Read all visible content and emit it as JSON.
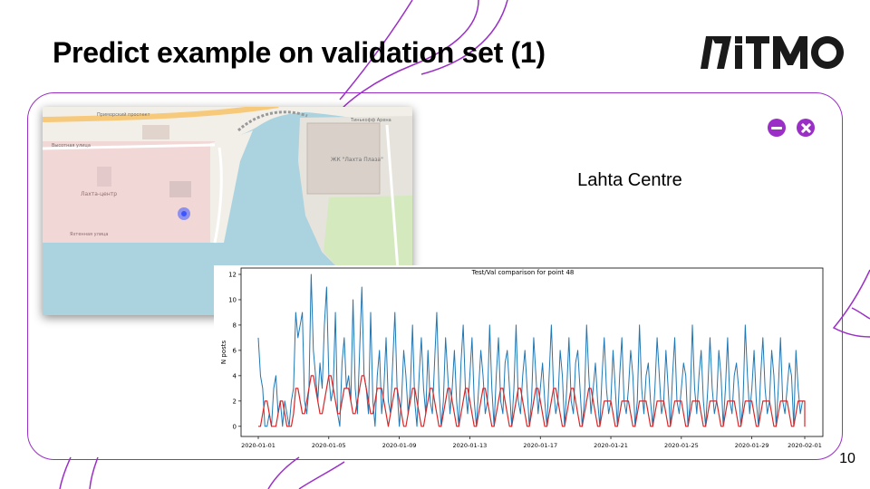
{
  "slide": {
    "title": "Predict example on validation set (1)",
    "logo_text": "ITMO",
    "page_number": "10",
    "accent_color": "#9b2ec7"
  },
  "map": {
    "labels": [
      "Лахта-центр",
      "ЖК \"Лахта Плаза\"",
      "Тинькофф Арена",
      "Приморский проспект",
      "Высотная улица",
      "Яхтенная улица"
    ],
    "marker_color": "#3b55ff"
  },
  "panel": {
    "place_label": "Lahta Centre",
    "minimize_icon": "minus-circle-icon",
    "close_icon": "close-circle-icon"
  },
  "chart_data": {
    "type": "line",
    "title": "Test/Val comparison for point 48",
    "xlabel": "",
    "ylabel": "N posts",
    "x_range": [
      "2020-01-01",
      "2020-02-01"
    ],
    "xticks": [
      "2020-01-01",
      "2020-01-05",
      "2020-01-09",
      "2020-01-13",
      "2020-01-17",
      "2020-01-21",
      "2020-01-25",
      "2020-01-29",
      "2020-02-01"
    ],
    "ylim": [
      -0.8,
      12.5
    ],
    "yticks": [
      0,
      2,
      4,
      6,
      8,
      10,
      12
    ],
    "grid": false,
    "hours_per_step": 3,
    "series": [
      {
        "color": "#1f77b4",
        "values": [
          7,
          4,
          3,
          0,
          0,
          1,
          0,
          3,
          4,
          1,
          2,
          0,
          2,
          1,
          0,
          2,
          3,
          9,
          7,
          8,
          9,
          2,
          1,
          3,
          12,
          6,
          4,
          2,
          5,
          3,
          8,
          11,
          4,
          2,
          3,
          9,
          1,
          0,
          5,
          7,
          3,
          4,
          2,
          10,
          3,
          1,
          6,
          11,
          4,
          3,
          1,
          9,
          2,
          0,
          4,
          6,
          1,
          3,
          7,
          2,
          1,
          5,
          9,
          3,
          0,
          2,
          6,
          4,
          1,
          3,
          8,
          2,
          0,
          4,
          7,
          3,
          1,
          6,
          2,
          1,
          5,
          9,
          3,
          0,
          2,
          7,
          4,
          1,
          3,
          6,
          2,
          0,
          5,
          8,
          3,
          1,
          4,
          7,
          2,
          0,
          3,
          6,
          4,
          1,
          2,
          8,
          3,
          0,
          4,
          7,
          2,
          1,
          5,
          6,
          3,
          0,
          3,
          8,
          2,
          1,
          4,
          6,
          3,
          0,
          2,
          7,
          4,
          1,
          3,
          5,
          2,
          0,
          4,
          8,
          3,
          1,
          2,
          6,
          4,
          0,
          3,
          7,
          2,
          1,
          5,
          6,
          3,
          0,
          2,
          8,
          4,
          1,
          3,
          5,
          2,
          0,
          4,
          7,
          3,
          1,
          2,
          6,
          3,
          0,
          4,
          7,
          2,
          1,
          3,
          6,
          4,
          0,
          2,
          8,
          3,
          1,
          4,
          5,
          2,
          0,
          3,
          7,
          4,
          1,
          2,
          6,
          3,
          0,
          4,
          7,
          2,
          1,
          3,
          5,
          4,
          0,
          2,
          8,
          3,
          1,
          4,
          6,
          2,
          0,
          3,
          7,
          3,
          1,
          2,
          6,
          4,
          0,
          3,
          7,
          2,
          1,
          4,
          5,
          3,
          0,
          2,
          8,
          4,
          1,
          3,
          6,
          2,
          0,
          4,
          7,
          3,
          1,
          2,
          6,
          4,
          0,
          3,
          7,
          2,
          1,
          3,
          5,
          4,
          0,
          6,
          3,
          1,
          2
        ]
      },
      {
        "color": "#d62728",
        "values": [
          0,
          0,
          1,
          2,
          2,
          1,
          0,
          0,
          0,
          1,
          2,
          2,
          1,
          0,
          0,
          0,
          1,
          3,
          3,
          2,
          1,
          1,
          2,
          3,
          4,
          4,
          3,
          2,
          1,
          1,
          2,
          3,
          4,
          4,
          3,
          2,
          1,
          1,
          2,
          3,
          3,
          3,
          2,
          1,
          1,
          2,
          3,
          4,
          4,
          3,
          2,
          1,
          1,
          2,
          3,
          3,
          3,
          2,
          1,
          0,
          1,
          2,
          3,
          3,
          2,
          1,
          0,
          0,
          1,
          2,
          3,
          3,
          2,
          1,
          0,
          0,
          1,
          2,
          3,
          3,
          2,
          1,
          0,
          0,
          1,
          2,
          3,
          3,
          2,
          1,
          0,
          0,
          1,
          2,
          3,
          3,
          2,
          1,
          0,
          0,
          1,
          2,
          3,
          3,
          2,
          1,
          0,
          0,
          1,
          2,
          3,
          3,
          2,
          1,
          0,
          0,
          1,
          2,
          3,
          3,
          2,
          1,
          0,
          0,
          1,
          2,
          3,
          3,
          2,
          1,
          0,
          0,
          1,
          2,
          3,
          3,
          2,
          1,
          0,
          0,
          1,
          2,
          3,
          3,
          2,
          1,
          0,
          0,
          1,
          2,
          3,
          3,
          2,
          1,
          0,
          0,
          1,
          2,
          2,
          2,
          2,
          1,
          0,
          0,
          1,
          2,
          2,
          2,
          2,
          1,
          0,
          0,
          1,
          2,
          2,
          2,
          2,
          1,
          0,
          0,
          1,
          2,
          2,
          2,
          2,
          1,
          0,
          0,
          1,
          2,
          2,
          2,
          2,
          1,
          0,
          0,
          1,
          2,
          2,
          2,
          2,
          1,
          0,
          0,
          1,
          2,
          2,
          2,
          2,
          1,
          0,
          0,
          1,
          2,
          2,
          2,
          2,
          1,
          0,
          0,
          1,
          2,
          2,
          2,
          2,
          1,
          0,
          0,
          1,
          2,
          2,
          2,
          2,
          1,
          0,
          0,
          1,
          2,
          2,
          2,
          2,
          1,
          0,
          0,
          1,
          2,
          2,
          2,
          2,
          1,
          0,
          0,
          1,
          2,
          2,
          2,
          2,
          1,
          0
        ]
      }
    ]
  }
}
